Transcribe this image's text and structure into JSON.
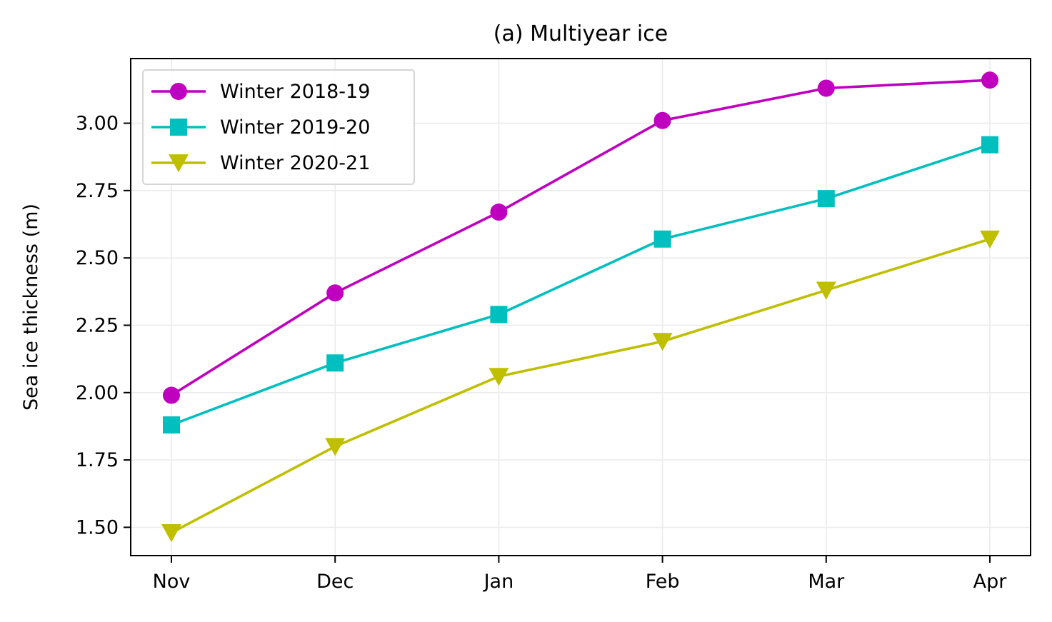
{
  "chart_data": {
    "type": "line",
    "title": "(a) Multiyear ice",
    "xlabel": "",
    "ylabel": "Sea ice thickness (m)",
    "categories": [
      "Nov",
      "Dec",
      "Jan",
      "Feb",
      "Mar",
      "Apr"
    ],
    "y_ticks": [
      1.5,
      1.75,
      2.0,
      2.25,
      2.5,
      2.75,
      3.0
    ],
    "y_tick_labels": [
      "1.50",
      "1.75",
      "2.00",
      "2.25",
      "2.50",
      "2.75",
      "3.00"
    ],
    "ylim": [
      1.395,
      3.24
    ],
    "grid": true,
    "legend_position": "upper-left",
    "series": [
      {
        "name": "Winter 2018-19",
        "color": "#bf00bf",
        "marker": "circle",
        "values": [
          1.99,
          2.37,
          2.67,
          3.01,
          3.13,
          3.16
        ]
      },
      {
        "name": "Winter 2019-20",
        "color": "#00bfbf",
        "marker": "square",
        "values": [
          1.88,
          2.11,
          2.29,
          2.57,
          2.72,
          2.92
        ]
      },
      {
        "name": "Winter 2020-21",
        "color": "#bfbf00",
        "marker": "triangle-down",
        "values": [
          1.48,
          1.8,
          2.06,
          2.19,
          2.38,
          2.57
        ]
      }
    ]
  }
}
